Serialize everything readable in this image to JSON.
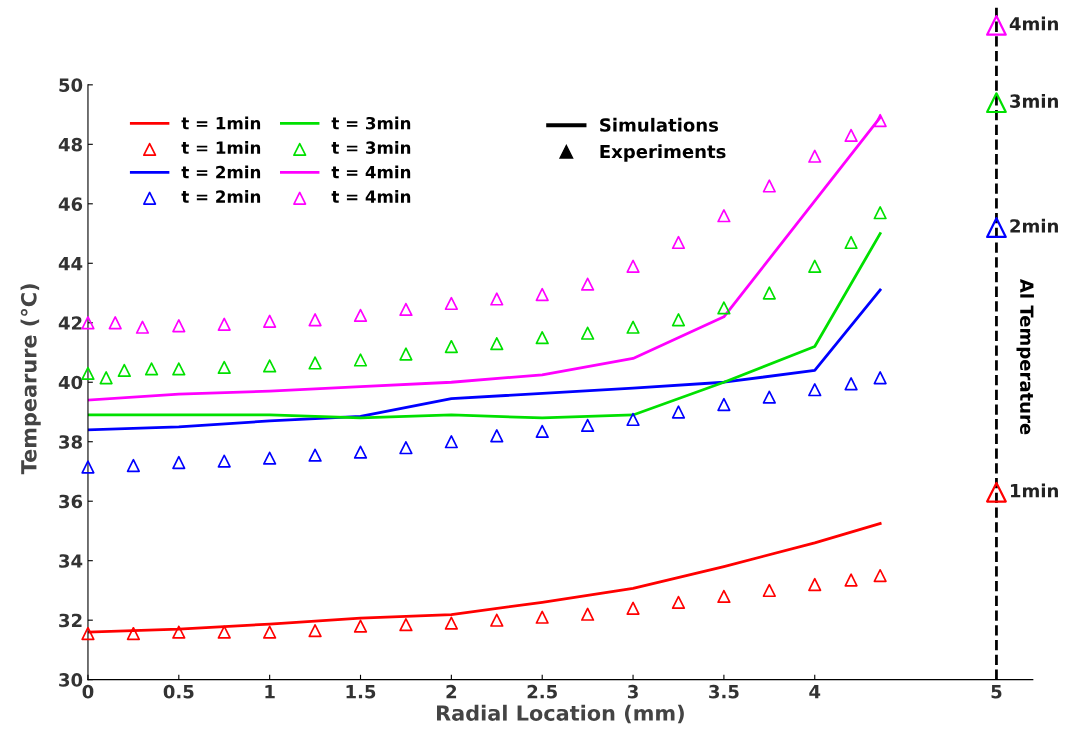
{
  "chart_data": {
    "type": "line",
    "xlabel": "Radial Location (mm)",
    "ylabel": "Tempearure (°C)",
    "y2label": "Al Temperature",
    "xlim": [
      0,
      5.2
    ],
    "ylim": [
      30,
      52.6
    ],
    "xticks": [
      0,
      0.5,
      1,
      1.5,
      2,
      2.5,
      3,
      3.5,
      4,
      5
    ],
    "yticks": [
      30,
      32,
      34,
      36,
      38,
      40,
      42,
      44,
      46,
      48,
      50
    ],
    "legend": "top left",
    "grid": false,
    "annotations": [
      "Simulations",
      "Experiments"
    ],
    "ref_lines": [
      {
        "axis": "x",
        "value": 5,
        "color": "#000000",
        "line_style": "dashed"
      }
    ],
    "series": [
      {
        "name": "t = 1min",
        "color": "#ff0000",
        "x": [
          0,
          0.5,
          1,
          1.5,
          2,
          2.5,
          3,
          3.5,
          4,
          4.36
        ],
        "values": [
          31.6,
          31.7,
          31.87,
          32.07,
          32.19,
          32.6,
          33.07,
          33.8,
          34.6,
          35.25
        ]
      },
      {
        "name": "t = 1min",
        "type": "scatter",
        "marker": "triangle",
        "color": "#ff0000",
        "x": [
          0,
          0.25,
          0.5,
          0.75,
          1,
          1.25,
          1.5,
          1.75,
          2,
          2.25,
          2.5,
          2.75,
          3,
          3.25,
          3.5,
          3.75,
          4,
          4.2,
          4.36
        ],
        "values": [
          31.55,
          31.55,
          31.6,
          31.6,
          31.6,
          31.65,
          31.8,
          31.85,
          31.9,
          32.0,
          32.1,
          32.2,
          32.4,
          32.6,
          32.8,
          33.0,
          33.2,
          33.35,
          33.5
        ]
      },
      {
        "name": "t = 2min",
        "color": "#0000ff",
        "x": [
          0,
          0.5,
          1,
          1.5,
          2,
          3,
          3.5,
          4,
          4.36
        ],
        "values": [
          38.4,
          38.5,
          38.7,
          38.85,
          39.45,
          39.8,
          40.0,
          40.4,
          43.1
        ]
      },
      {
        "name": "t = 2min",
        "type": "scatter",
        "marker": "triangle",
        "color": "#0000ff",
        "x": [
          0,
          0.25,
          0.5,
          0.75,
          1,
          1.25,
          1.5,
          1.75,
          2,
          2.25,
          2.5,
          2.75,
          3,
          3.25,
          3.5,
          3.75,
          4,
          4.2,
          4.36
        ],
        "values": [
          37.15,
          37.2,
          37.3,
          37.35,
          37.45,
          37.55,
          37.65,
          37.8,
          38.0,
          38.2,
          38.35,
          38.55,
          38.75,
          39.0,
          39.25,
          39.5,
          39.75,
          39.95,
          40.15
        ]
      },
      {
        "name": "t = 3min",
        "color": "#00e000",
        "x": [
          0,
          1,
          1.5,
          2,
          2.5,
          3,
          3.5,
          4,
          4.36
        ],
        "values": [
          38.9,
          38.9,
          38.8,
          38.9,
          38.8,
          38.9,
          40.0,
          41.2,
          45.0
        ]
      },
      {
        "name": "t = 3min",
        "type": "scatter",
        "marker": "triangle",
        "color": "#00e000",
        "x": [
          0,
          0.1,
          0.2,
          0.35,
          0.5,
          0.75,
          1,
          1.25,
          1.5,
          1.75,
          2,
          2.25,
          2.5,
          2.75,
          3,
          3.25,
          3.5,
          3.75,
          4,
          4.2,
          4.36
        ],
        "values": [
          40.3,
          40.15,
          40.4,
          40.45,
          40.45,
          40.5,
          40.55,
          40.65,
          40.75,
          40.95,
          41.2,
          41.3,
          41.5,
          41.65,
          41.85,
          42.1,
          42.5,
          43.0,
          43.9,
          44.7,
          45.7
        ]
      },
      {
        "name": "t = 4min",
        "color": "#ff00ff",
        "x": [
          0,
          0.5,
          1,
          1.5,
          2,
          2.5,
          3,
          3.5,
          4.36
        ],
        "values": [
          39.4,
          39.6,
          39.7,
          39.85,
          40.0,
          40.25,
          40.8,
          42.2,
          48.9
        ]
      },
      {
        "name": "t = 4min",
        "type": "scatter",
        "marker": "triangle",
        "color": "#ff00ff",
        "x": [
          0,
          0.15,
          0.3,
          0.5,
          0.75,
          1,
          1.25,
          1.5,
          1.75,
          2,
          2.25,
          2.5,
          2.75,
          3,
          3.25,
          3.5,
          3.75,
          4,
          4.2,
          4.36
        ],
        "values": [
          42.0,
          42.0,
          41.85,
          41.9,
          41.95,
          42.05,
          42.1,
          42.25,
          42.45,
          42.65,
          42.8,
          42.95,
          43.3,
          43.9,
          44.7,
          45.6,
          46.6,
          47.6,
          48.3,
          48.8
        ]
      },
      {
        "name": "1min",
        "type": "scatter",
        "marker": "triangle",
        "color": "#ff0000",
        "x": [
          5
        ],
        "values": [
          36.3
        ]
      },
      {
        "name": "2min",
        "type": "scatter",
        "marker": "triangle",
        "color": "#0000ff",
        "x": [
          5
        ],
        "values": [
          45.2
        ]
      },
      {
        "name": "3min",
        "type": "scatter",
        "marker": "triangle",
        "color": "#00e000",
        "x": [
          5
        ],
        "values": [
          49.4
        ]
      },
      {
        "name": "4min",
        "type": "scatter",
        "marker": "triangle",
        "color": "#ff00ff",
        "x": [
          5
        ],
        "values": [
          52.0
        ]
      }
    ]
  }
}
